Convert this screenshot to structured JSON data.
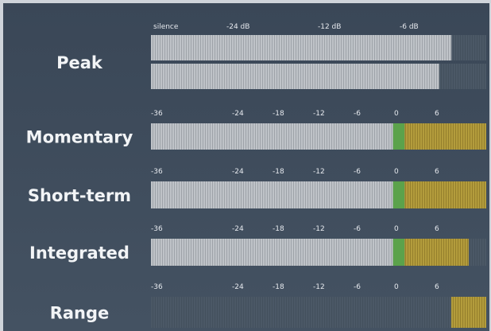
{
  "peak": {
    "label": "Peak",
    "ticks": [
      {
        "label": "silence"
      },
      {
        "value": -24,
        "label": "-24 dB"
      },
      {
        "value": -12,
        "label": "-12 dB"
      },
      {
        "value": -6,
        "label": "-6 dB"
      }
    ],
    "levels": [
      -2.2,
      -3.1
    ]
  },
  "loudness_scale": {
    "ticks": [
      -36,
      -24,
      -18,
      -12,
      -6,
      0,
      6
    ]
  },
  "meters": [
    {
      "label": "Momentary",
      "level": 13.3
    },
    {
      "label": "Short-term",
      "level": 13.3
    },
    {
      "label": "Integrated",
      "level": 10.7
    },
    {
      "label": "Range",
      "low": 8.1,
      "high": 13.3
    }
  ]
}
